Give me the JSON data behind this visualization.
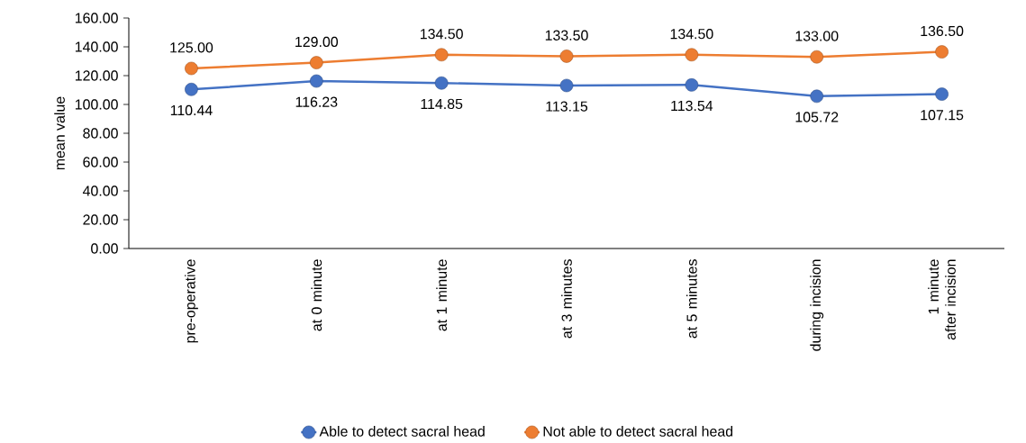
{
  "chart_data": {
    "type": "line",
    "ylabel": "mean value",
    "categories": [
      "pre-operative",
      "at 0 minute",
      "at 1 minute",
      "at 3 minutes",
      "at 5 minutes",
      "during incision",
      "1 minute after incision"
    ],
    "series": [
      {
        "name": "Able to detect sacral head",
        "color": "#4472c4",
        "values": [
          110.44,
          116.23,
          114.85,
          113.15,
          113.54,
          105.72,
          107.15
        ],
        "value_labels": [
          "110.44",
          "116.23",
          "114.85",
          "113.15",
          "113.54",
          "105.72",
          "107.15"
        ]
      },
      {
        "name": "Not able to detect sacral head",
        "color": "#ed7d31",
        "values": [
          125.0,
          129.0,
          134.5,
          133.5,
          134.5,
          133.0,
          136.5
        ],
        "value_labels": [
          "125.00",
          "129.00",
          "134.50",
          "133.50",
          "134.50",
          "133.00",
          "136.50"
        ]
      }
    ],
    "ylim": [
      0,
      160
    ],
    "yticks": [
      {
        "value": 0,
        "label": "0.00"
      },
      {
        "value": 20,
        "label": "20.00"
      },
      {
        "value": 40,
        "label": "40.00"
      },
      {
        "value": 60,
        "label": "60.00"
      },
      {
        "value": 80,
        "label": "80.00"
      },
      {
        "value": 100,
        "label": "100.00"
      },
      {
        "value": 120,
        "label": "120.00"
      },
      {
        "value": 140,
        "label": "140.00"
      },
      {
        "value": 160,
        "label": "160.00"
      }
    ],
    "grid": false,
    "legend": "bottom",
    "marker": "circle",
    "line_style": "solid"
  }
}
